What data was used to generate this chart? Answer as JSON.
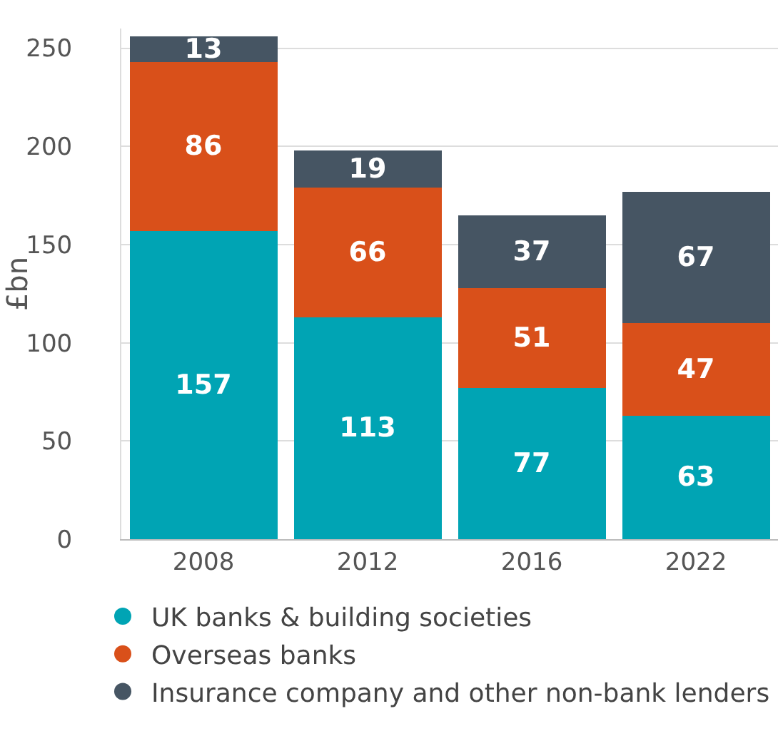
{
  "chart_data": {
    "type": "bar",
    "stacked": true,
    "ylabel": "£bn",
    "categories": [
      "2008",
      "2012",
      "2016",
      "2022"
    ],
    "series": [
      {
        "name": "UK banks & building societies",
        "color": "#00a4b4",
        "values": [
          157,
          113,
          77,
          63
        ]
      },
      {
        "name": "Overseas banks",
        "color": "#d9501a",
        "values": [
          86,
          66,
          51,
          47
        ]
      },
      {
        "name": "Insurance company and other non-bank lenders",
        "color": "#465563",
        "values": [
          13,
          19,
          37,
          67
        ]
      }
    ],
    "ylim": [
      0,
      260
    ],
    "yticks": [
      0,
      50,
      100,
      150,
      200,
      250
    ],
    "grid": "y",
    "legend": "bottom",
    "data_labels": true,
    "marker": "circle"
  }
}
